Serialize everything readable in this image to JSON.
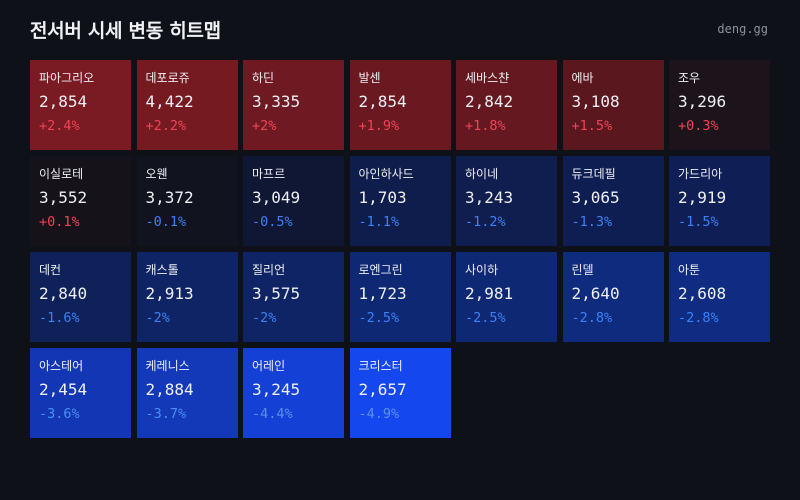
{
  "header": {
    "title": "전서버 시세 변동 히트맵",
    "brand": "deng.gg"
  },
  "colors": {
    "background": "#0e1118",
    "up_text": "#ef4458",
    "down_text": "#3b82f6"
  },
  "tiles": [
    {
      "name": "파아그리오",
      "price": "2,854",
      "change": "+2.4%",
      "dir": "up",
      "bg": "#7a1a22"
    },
    {
      "name": "데포로쥬",
      "price": "4,422",
      "change": "+2.2%",
      "dir": "up",
      "bg": "#761a22"
    },
    {
      "name": "하딘",
      "price": "3,335",
      "change": "+2%",
      "dir": "up",
      "bg": "#6f1a22"
    },
    {
      "name": "발센",
      "price": "2,854",
      "change": "+1.9%",
      "dir": "up",
      "bg": "#6a1921"
    },
    {
      "name": "세바스챤",
      "price": "2,842",
      "change": "+1.8%",
      "dir": "up",
      "bg": "#661820"
    },
    {
      "name": "에바",
      "price": "3,108",
      "change": "+1.5%",
      "dir": "up",
      "bg": "#5a171e"
    },
    {
      "name": "조우",
      "price": "3,296",
      "change": "+0.3%",
      "dir": "up",
      "bg": "#1d131a"
    },
    {
      "name": "이실로테",
      "price": "3,552",
      "change": "+0.1%",
      "dir": "up",
      "bg": "#151219"
    },
    {
      "name": "오웬",
      "price": "3,372",
      "change": "-0.1%",
      "dir": "down",
      "bg": "#11141f"
    },
    {
      "name": "마프르",
      "price": "3,049",
      "change": "-0.5%",
      "dir": "down",
      "bg": "#0f1734"
    },
    {
      "name": "아인하사드",
      "price": "1,703",
      "change": "-1.1%",
      "dir": "down",
      "bg": "#0f1d4d"
    },
    {
      "name": "하이네",
      "price": "3,243",
      "change": "-1.2%",
      "dir": "down",
      "bg": "#0f1d4f"
    },
    {
      "name": "듀크데필",
      "price": "3,065",
      "change": "-1.3%",
      "dir": "down",
      "bg": "#0f1e52"
    },
    {
      "name": "가드리아",
      "price": "2,919",
      "change": "-1.5%",
      "dir": "down",
      "bg": "#0f1f56"
    },
    {
      "name": "데컨",
      "price": "2,840",
      "change": "-1.6%",
      "dir": "down",
      "bg": "#0f2159"
    },
    {
      "name": "캐스톨",
      "price": "2,913",
      "change": "-2%",
      "dir": "down",
      "bg": "#0f2464"
    },
    {
      "name": "질리언",
      "price": "3,575",
      "change": "-2%",
      "dir": "down",
      "bg": "#0f2464"
    },
    {
      "name": "로엔그린",
      "price": "1,723",
      "change": "-2.5%",
      "dir": "down",
      "bg": "#0f2873"
    },
    {
      "name": "사이하",
      "price": "2,981",
      "change": "-2.5%",
      "dir": "down",
      "bg": "#0f2873"
    },
    {
      "name": "린델",
      "price": "2,640",
      "change": "-2.8%",
      "dir": "down",
      "bg": "#0f2b7e"
    },
    {
      "name": "아툰",
      "price": "2,608",
      "change": "-2.8%",
      "dir": "down",
      "bg": "#0f2c82"
    },
    {
      "name": "아스테어",
      "price": "2,454",
      "change": "-3.6%",
      "dir": "down",
      "bg": "#1337b4"
    },
    {
      "name": "케레니스",
      "price": "2,884",
      "change": "-3.7%",
      "dir": "down",
      "bg": "#1338b8"
    },
    {
      "name": "어레인",
      "price": "3,245",
      "change": "-4.4%",
      "dir": "down",
      "bg": "#1440d6"
    },
    {
      "name": "크리스터",
      "price": "2,657",
      "change": "-4.9%",
      "dir": "down",
      "bg": "#1547ee"
    }
  ]
}
